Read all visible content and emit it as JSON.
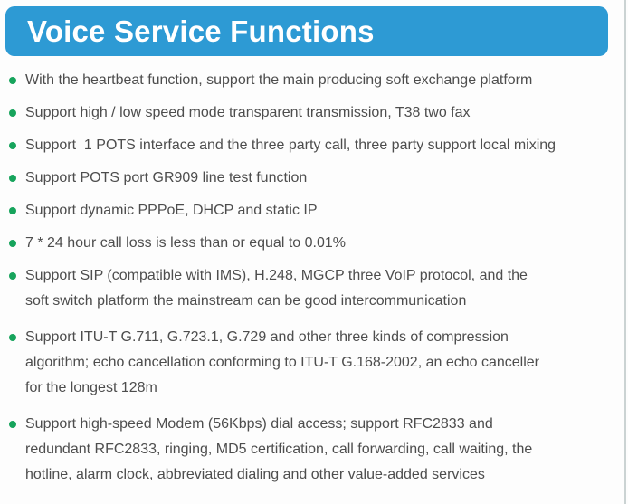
{
  "page": {
    "background_color": "#fdfdfd",
    "right_border_color": "#cbd3d3"
  },
  "header": {
    "title": "Voice Service Functions",
    "background_color": "#2d9ad4",
    "text_color": "#ffffff"
  },
  "list": {
    "bullet_color": "#17a45c",
    "text_color": "#4d4d4d",
    "items": [
      {
        "text": "With the heartbeat function, support the main producing soft exchange platform"
      },
      {
        "text": "Support high / low speed mode transparent transmission, T38 two fax"
      },
      {
        "text": "Support  1 POTS interface and the three party call, three party support local mixing"
      },
      {
        "text": "Support POTS port GR909 line test function"
      },
      {
        "text": "Support dynamic PPPoE, DHCP and static IP"
      },
      {
        "text": "7 * 24 hour call loss is less than or equal to 0.01%"
      },
      {
        "text": "Support SIP (compatible with IMS), H.248, MGCP three VoIP protocol, and the\nsoft switch platform the mainstream can be good intercommunication"
      },
      {
        "text": "Support ITU-T G.711, G.723.1, G.729 and other three kinds of compression\nalgorithm; echo cancellation conforming to ITU-T G.168-2002, an echo canceller\nfor the longest 128m"
      },
      {
        "text": "Support high-speed Modem (56Kbps) dial access; support RFC2833 and\nredundant RFC2833, ringing, MD5 certification, call forwarding, call waiting, the\nhotline, alarm clock, abbreviated dialing and other value-added services"
      }
    ]
  }
}
